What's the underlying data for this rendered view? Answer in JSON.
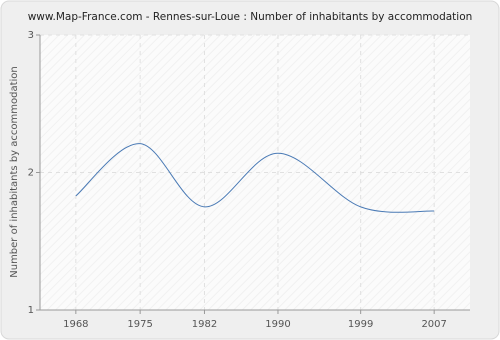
{
  "chart_data": {
    "type": "line",
    "title": "www.Map-France.com - Rennes-sur-Loue : Number of inhabitants by accommodation",
    "y_label": "Number of inhabitants by accommodation",
    "x": [
      1968,
      1975,
      1982,
      1990,
      1999,
      2007
    ],
    "series": [
      {
        "name": "Number of inhabitants by accommodation",
        "color": "#4a7ab5",
        "values": [
          1.83,
          2.21,
          1.75,
          2.14,
          1.75,
          1.72
        ]
      }
    ],
    "xlim": [
      1964.1,
      2010.9
    ],
    "xticks": [
      1968,
      1975,
      1982,
      1990,
      1999,
      2007
    ],
    "ylim": [
      1,
      3
    ],
    "yticks": [
      1,
      2,
      3
    ],
    "grid": true
  }
}
